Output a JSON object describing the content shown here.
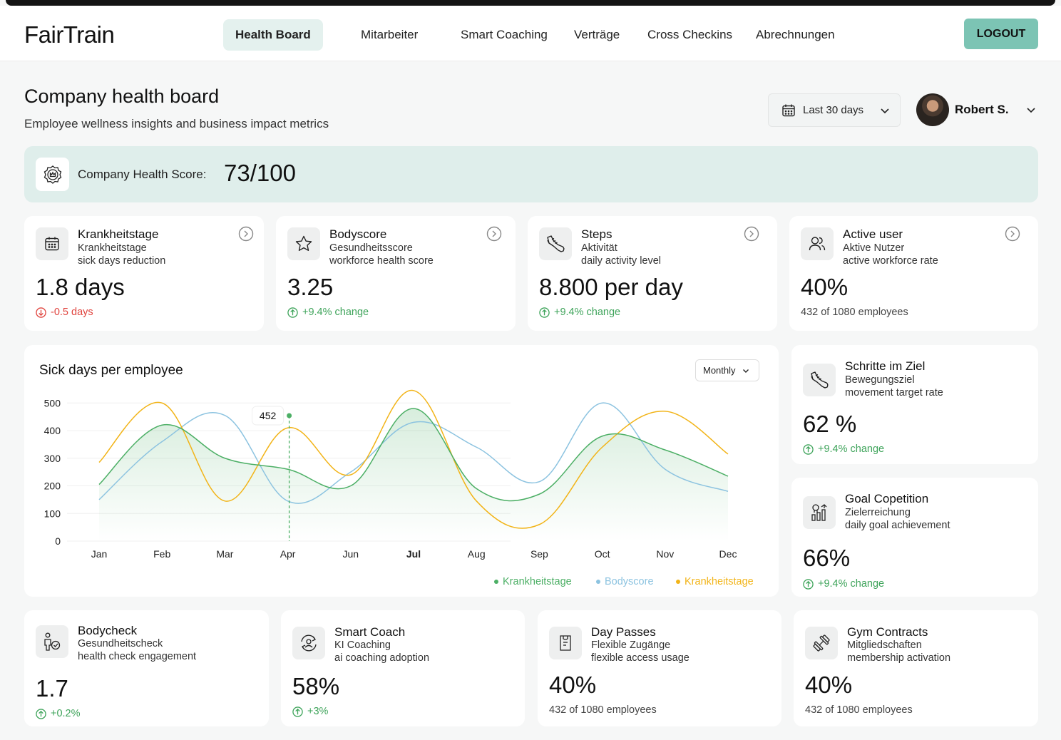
{
  "app": {
    "logo": "FairTrain",
    "logout_label": "LOGOUT"
  },
  "nav": [
    {
      "label": "Health Board",
      "active": true
    },
    {
      "label": "Mitarbeiter"
    },
    {
      "label": "Smart Coaching"
    },
    {
      "label": "Verträge"
    },
    {
      "label": "Cross Checkins"
    },
    {
      "label": "Abrechnungen"
    }
  ],
  "page": {
    "title": "Company health board",
    "subtitle": "Employee wellness insights and business impact metrics"
  },
  "date_filter": {
    "label": "Last 30 days"
  },
  "user": {
    "name": "Robert S."
  },
  "health_score": {
    "label": "Company Health Score:",
    "value": "73/100"
  },
  "kpis": [
    {
      "title": "Krankheitstage",
      "sub1": "Krankheitstage",
      "sub2": "sick days reduction",
      "value": "1.8 days",
      "change": "-0.5 days",
      "trend": "down"
    },
    {
      "title": "Bodyscore",
      "sub1": "Gesundheitsscore",
      "sub2": "workforce health score",
      "value": "3.25",
      "change": "+9.4% change",
      "trend": "up"
    },
    {
      "title": "Steps",
      "sub1": "Aktivität",
      "sub2": "daily activity level",
      "value": "8.800 per day",
      "change": "+9.4% change",
      "trend": "up"
    },
    {
      "title": "Active user",
      "sub1": "Aktive Nutzer",
      "sub2": "active workforce rate",
      "value": "40%",
      "note": "432 of 1080 employees"
    }
  ],
  "side_cards": [
    {
      "title": "Schritte im Ziel",
      "sub1": "Bewegungsziel",
      "sub2": "movement target rate",
      "value": "62 %",
      "change": "+9.4% change"
    },
    {
      "title": "Goal Copetition",
      "sub1": "Zielerreichung",
      "sub2": "daily goal achievement",
      "value": "66%",
      "change": "+9.4% change"
    }
  ],
  "bottom_cards": [
    {
      "title": "Bodycheck",
      "sub1": "Gesundheitscheck",
      "sub2": "health check engagement",
      "value": "1.7",
      "change": "+0.2%"
    },
    {
      "title": "Smart Coach",
      "sub1": "KI Coaching",
      "sub2": "ai coaching adoption",
      "value": "58%",
      "change": "+3%"
    },
    {
      "title": "Day Passes",
      "sub1": "Flexible Zugänge",
      "sub2": "flexible access usage",
      "value": "40%",
      "note": "432 of 1080 employees"
    },
    {
      "title": "Gym Contracts",
      "sub1": "Mitgliedschaften",
      "sub2": "membership activation",
      "value": "40%",
      "note": "432 of 1080 employees"
    }
  ],
  "chart": {
    "title": "Sick days per employee",
    "period_select": "Monthly"
  },
  "colors": {
    "accent": "#7cc4b4",
    "green": "#4caf65",
    "blue": "#8cc3e0",
    "orange": "#f2b418",
    "negative": "#e0443e"
  },
  "chart_data": {
    "type": "line",
    "title": "Sick days per employee",
    "categories": [
      "Jan",
      "Feb",
      "Mar",
      "Apr",
      "Jun",
      "Jul",
      "Aug",
      "Sep",
      "Oct",
      "Nov",
      "Dec"
    ],
    "highlight_category": "Jul",
    "yticks": [
      0,
      100,
      200,
      300,
      400,
      500
    ],
    "ylim": [
      0,
      500
    ],
    "tooltip": {
      "x": "Apr",
      "value": "452"
    },
    "series": [
      {
        "name": "Krankheitstage",
        "color": "#4caf65",
        "values": [
          205,
          420,
          300,
          260,
          200,
          480,
          190,
          170,
          380,
          330,
          235
        ]
      },
      {
        "name": "Bodyscore",
        "color": "#8cc3e0",
        "values": [
          150,
          360,
          455,
          145,
          250,
          430,
          340,
          215,
          500,
          260,
          180
        ]
      },
      {
        "name": "Krankheitstage",
        "color": "#f2b418",
        "values": [
          285,
          500,
          145,
          410,
          240,
          545,
          145,
          60,
          340,
          470,
          315
        ]
      }
    ],
    "legend": "bottom-right"
  }
}
